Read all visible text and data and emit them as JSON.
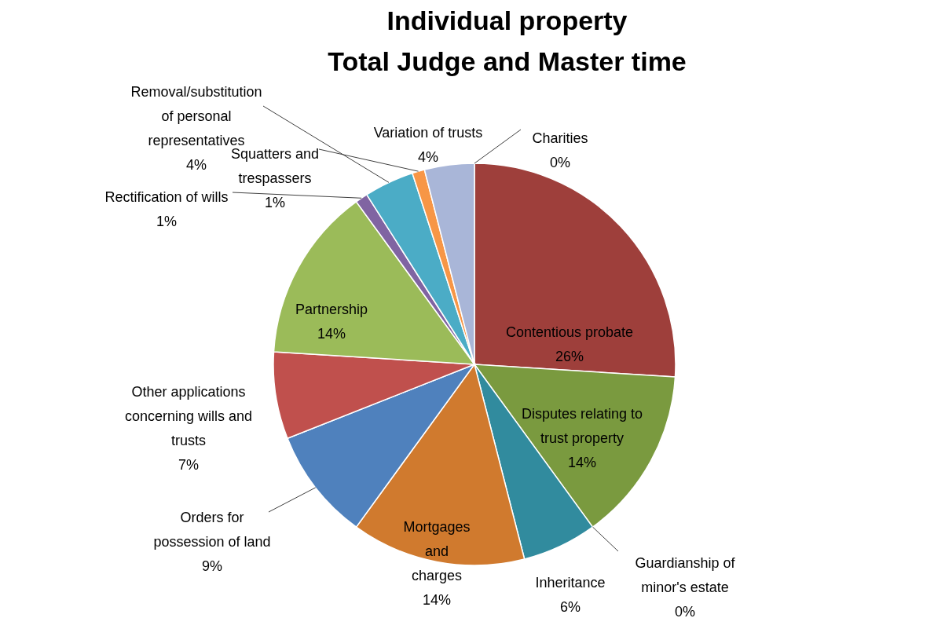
{
  "chart_data": {
    "type": "pie",
    "title": "Individual property",
    "subtitle": "Total Judge and Master time",
    "categories": [
      "Charities",
      "Contentious probate",
      "Disputes relating to trust property",
      "Guardianship of minor's estate",
      "Inheritance",
      "Mortgages and charges",
      "Orders for possession of land",
      "Other applications concerning wills and trusts",
      "Partnership",
      "Rectification of wills",
      "Removal/substitution of personal representatives",
      "Squatters and trespassers",
      "Variation of trusts"
    ],
    "values": [
      0,
      26,
      14,
      0,
      6,
      14,
      9,
      7,
      14,
      1,
      4,
      1,
      4
    ],
    "value_labels": [
      "0%",
      "26%",
      "14%",
      "0%",
      "6%",
      "14%",
      "9%",
      "7%",
      "14%",
      "1%",
      "4%",
      "1%",
      "4%"
    ],
    "colors": [
      "#2f5d8f",
      "#9e3f3b",
      "#7a9a3f",
      "#2c4d75",
      "#318b9e",
      "#d07a2e",
      "#4f81bd",
      "#c0504d",
      "#9bbb59",
      "#8064a2",
      "#4bacc6",
      "#f79646",
      "#a9b6d8"
    ]
  }
}
